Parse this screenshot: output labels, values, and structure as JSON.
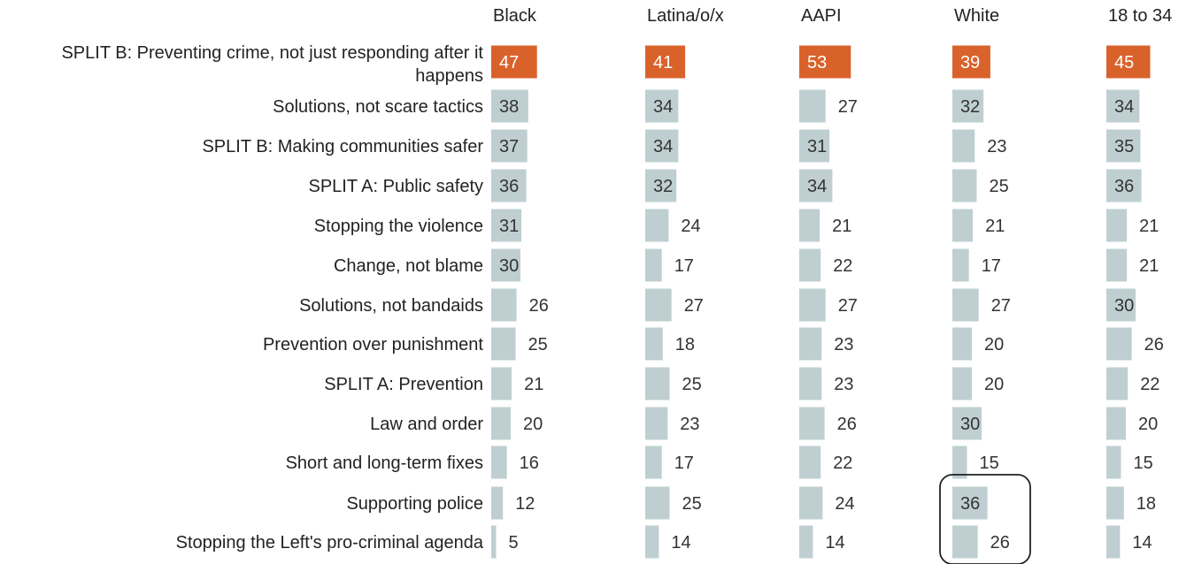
{
  "chart_data": {
    "type": "bar",
    "title": "",
    "xlabel": "",
    "ylabel": "",
    "categories": [
      "SPLIT B: Preventing crime, not just responding after it happens",
      "Solutions, not scare tactics",
      "SPLIT B: Making communities safer",
      "SPLIT A: Public safety",
      "Stopping the violence",
      "Change, not blame",
      "Solutions, not bandaids",
      "Prevention over punishment",
      "SPLIT A: Prevention",
      "Law and order",
      "Short and long-term fixes",
      "Supporting police",
      "Stopping the Left's pro-criminal agenda"
    ],
    "category_label_lines": [
      [
        "SPLIT B:  Preventing crime, not just responding after it",
        "happens"
      ],
      [
        "Solutions, not scare tactics"
      ],
      [
        "SPLIT B: Making communities safer"
      ],
      [
        "SPLIT A: Public safety"
      ],
      [
        "Stopping the violence"
      ],
      [
        "Change, not blame"
      ],
      [
        "Solutions, not bandaids"
      ],
      [
        "Prevention over punishment"
      ],
      [
        "SPLIT A: Prevention"
      ],
      [
        "Law and order"
      ],
      [
        "Short and long-term fixes"
      ],
      [
        "Supporting police"
      ],
      [
        "Stopping the Left's pro-criminal agenda"
      ]
    ],
    "series": [
      {
        "name": "Black",
        "values": [
          47,
          38,
          37,
          36,
          31,
          30,
          26,
          25,
          21,
          20,
          16,
          12,
          5
        ]
      },
      {
        "name": "Latina/o/x",
        "values": [
          41,
          34,
          34,
          32,
          24,
          17,
          27,
          18,
          25,
          23,
          17,
          25,
          14
        ]
      },
      {
        "name": "AAPI",
        "values": [
          53,
          27,
          31,
          34,
          21,
          22,
          27,
          23,
          23,
          26,
          22,
          24,
          14
        ]
      },
      {
        "name": "White",
        "values": [
          39,
          32,
          23,
          25,
          21,
          17,
          27,
          20,
          20,
          30,
          15,
          36,
          26
        ]
      },
      {
        "name": "18 to 34",
        "values": [
          45,
          34,
          35,
          36,
          21,
          21,
          30,
          26,
          22,
          20,
          15,
          18,
          14
        ]
      }
    ],
    "highlighted_category": "SPLIT B: Preventing crime, not just responding after it happens",
    "highlight_box": {
      "series": "White",
      "categories": [
        "Supporting police",
        "Stopping the Left's pro-criminal agenda"
      ]
    },
    "colors": {
      "highlight_bar": "#d9622b",
      "bar": "#bfcfd1",
      "value_on_dark": "#ffffff",
      "value_on_light": "#333333"
    },
    "grid": false,
    "legend": "none"
  }
}
